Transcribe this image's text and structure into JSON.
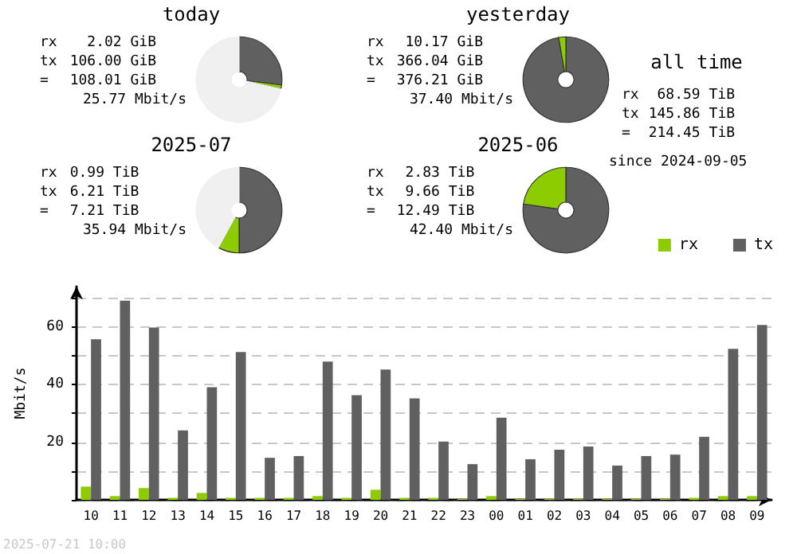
{
  "chart_data": [
    {
      "type": "donut",
      "title": "today",
      "categories": [
        null,
        null,
        null
      ],
      "values": [
        27,
        1.5,
        71.5
      ],
      "colors": [
        "#606060",
        "#8ccc00",
        "#f0f0f0"
      ],
      "annotations": [
        "rx",
        "2.02 GiB",
        "tx",
        "106.00 GiB",
        "=",
        "108.01 GiB",
        "25.77 Mbit/s"
      ]
    },
    {
      "type": "donut",
      "title": "yesterday",
      "categories": [
        null,
        null
      ],
      "values": [
        97.3,
        2.7
      ],
      "colors": [
        "#606060",
        "#8ccc00"
      ],
      "annotations": [
        "rx",
        "10.17 GiB",
        "tx",
        "366.04 GiB",
        "=",
        "376.21 GiB",
        "37.40 Mbit/s"
      ]
    },
    {
      "type": "donut",
      "title": "2025-07",
      "categories": [
        null,
        null,
        null
      ],
      "values": [
        50,
        8,
        42
      ],
      "colors": [
        "#606060",
        "#8ccc00",
        "#f0f0f0"
      ],
      "annotations": [
        "rx",
        "0.99 TiB",
        "tx",
        "6.21 TiB",
        "=",
        "7.21 TiB",
        "35.94 Mbit/s"
      ]
    },
    {
      "type": "donut",
      "title": "2025-06",
      "categories": [
        null,
        null
      ],
      "values": [
        77.3,
        22.7
      ],
      "colors": [
        "#606060",
        "#8ccc00"
      ],
      "annotations": [
        "rx",
        "2.83 TiB",
        "tx",
        "9.66 TiB",
        "=",
        "12.49 TiB",
        "42.40 Mbit/s"
      ]
    },
    {
      "type": "other",
      "title": "all time",
      "annotations": [
        "rx",
        "68.59 TiB",
        "tx",
        "145.86 TiB",
        "=",
        "214.45 TiB",
        "since 2024-09-05"
      ]
    },
    {
      "type": "bar",
      "ylabel": "Mbit/s",
      "categories": [
        "10",
        "11",
        "12",
        "13",
        "14",
        "15",
        "16",
        "17",
        "18",
        "19",
        "20",
        "21",
        "22",
        "23",
        "00",
        "01",
        "02",
        "03",
        "04",
        "05",
        "06",
        "07",
        "08",
        "09"
      ],
      "series": [
        {
          "name": "rx",
          "color": "#8ccc00",
          "values": [
            4.6,
            1.3,
            4.1,
            0.7,
            2.4,
            0.7,
            0.7,
            0.7,
            1.3,
            0.7,
            3.5,
            0.7,
            0.7,
            0.3,
            1.3,
            0.3,
            0.3,
            0.3,
            0.3,
            0.3,
            0.3,
            0.7,
            1.3,
            1.3
          ]
        },
        {
          "name": "tx",
          "color": "#606060",
          "values": [
            55.7,
            69.1,
            59.8,
            24.1,
            39.1,
            51.3,
            14.6,
            15.2,
            48.0,
            36.3,
            45.2,
            35.2,
            20.2,
            12.4,
            28.5,
            14.1,
            17.4,
            18.5,
            11.9,
            15.2,
            15.7,
            21.9,
            52.4,
            60.7
          ]
        }
      ],
      "ylim": [
        0,
        74
      ],
      "yticks": [
        {
          "value": 0,
          "label": null
        },
        {
          "value": 10,
          "label": null
        },
        20,
        {
          "value": 30,
          "label": null
        },
        40,
        {
          "value": 50,
          "label": null
        },
        60,
        {
          "value": 70,
          "label": null
        }
      ],
      "grid": "y",
      "legend": "top right",
      "annotations": [
        "2025-07-21 10:00"
      ]
    }
  ]
}
